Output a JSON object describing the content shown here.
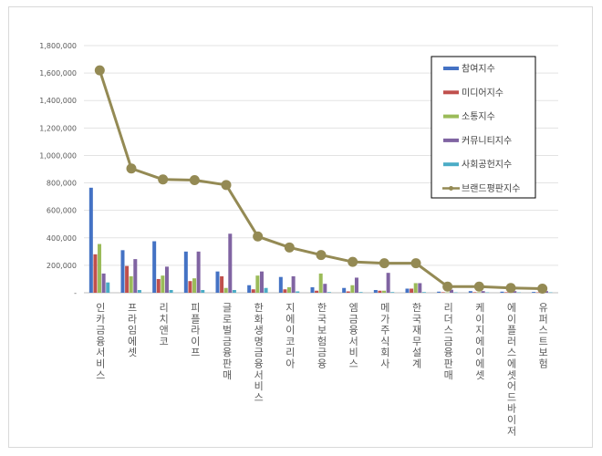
{
  "chart_data": {
    "type": "bar",
    "title": "",
    "xlabel": "",
    "ylabel": "",
    "ylim": [
      0,
      1800000
    ],
    "yticks": [
      0,
      200000,
      400000,
      600000,
      800000,
      1000000,
      1200000,
      1400000,
      1600000,
      1800000
    ],
    "ytick_labels": [
      "-",
      "200,000",
      "400,000",
      "600,000",
      "800,000",
      "1,000,000",
      "1,200,000",
      "1,400,000",
      "1,600,000",
      "1,800,000"
    ],
    "grid": true,
    "legend_position": "upper right",
    "categories": [
      "인카금융서비스",
      "프라임에셋",
      "리치앤코",
      "피플라이프",
      "글로벌금융판매",
      "한화생명금융서비스",
      "지에이코리아",
      "한국보험금융",
      "엠금융서비스",
      "메가주식회사",
      "한국재무설계",
      "리더스금융판매",
      "케이지에이에셋",
      "에이플러스에셋어드바이저",
      "유퍼스트보험"
    ],
    "series": [
      {
        "name": "참여지수",
        "type": "bar",
        "color": "#4472c4",
        "values": [
          765000,
          310000,
          375000,
          300000,
          155000,
          55000,
          115000,
          40000,
          35000,
          20000,
          30000,
          8000,
          12000,
          8000,
          6000
        ]
      },
      {
        "name": "미디어지수",
        "type": "bar",
        "color": "#c0504d",
        "values": [
          280000,
          195000,
          100000,
          85000,
          120000,
          25000,
          25000,
          15000,
          10000,
          15000,
          30000,
          4000,
          4000,
          4000,
          3000
        ]
      },
      {
        "name": "소통지수",
        "type": "bar",
        "color": "#9bbb59",
        "values": [
          355000,
          120000,
          125000,
          105000,
          35000,
          125000,
          40000,
          140000,
          55000,
          15000,
          70000,
          3000,
          4000,
          3000,
          3000
        ]
      },
      {
        "name": "커뮤니티지수",
        "type": "bar",
        "color": "#8064a2",
        "values": [
          140000,
          245000,
          190000,
          300000,
          430000,
          155000,
          120000,
          65000,
          110000,
          145000,
          70000,
          22000,
          12000,
          12000,
          12000
        ]
      },
      {
        "name": "사회공헌지수",
        "type": "bar",
        "color": "#4bacc6",
        "values": [
          75000,
          20000,
          20000,
          20000,
          20000,
          35000,
          10000,
          5000,
          5000,
          5000,
          5000,
          3000,
          3000,
          3000,
          3000
        ]
      },
      {
        "name": "브랜드평판지수",
        "type": "line",
        "color": "#948a54",
        "values": [
          1620000,
          905000,
          825000,
          820000,
          785000,
          410000,
          330000,
          275000,
          225000,
          215000,
          215000,
          45000,
          45000,
          35000,
          30000
        ]
      }
    ]
  }
}
